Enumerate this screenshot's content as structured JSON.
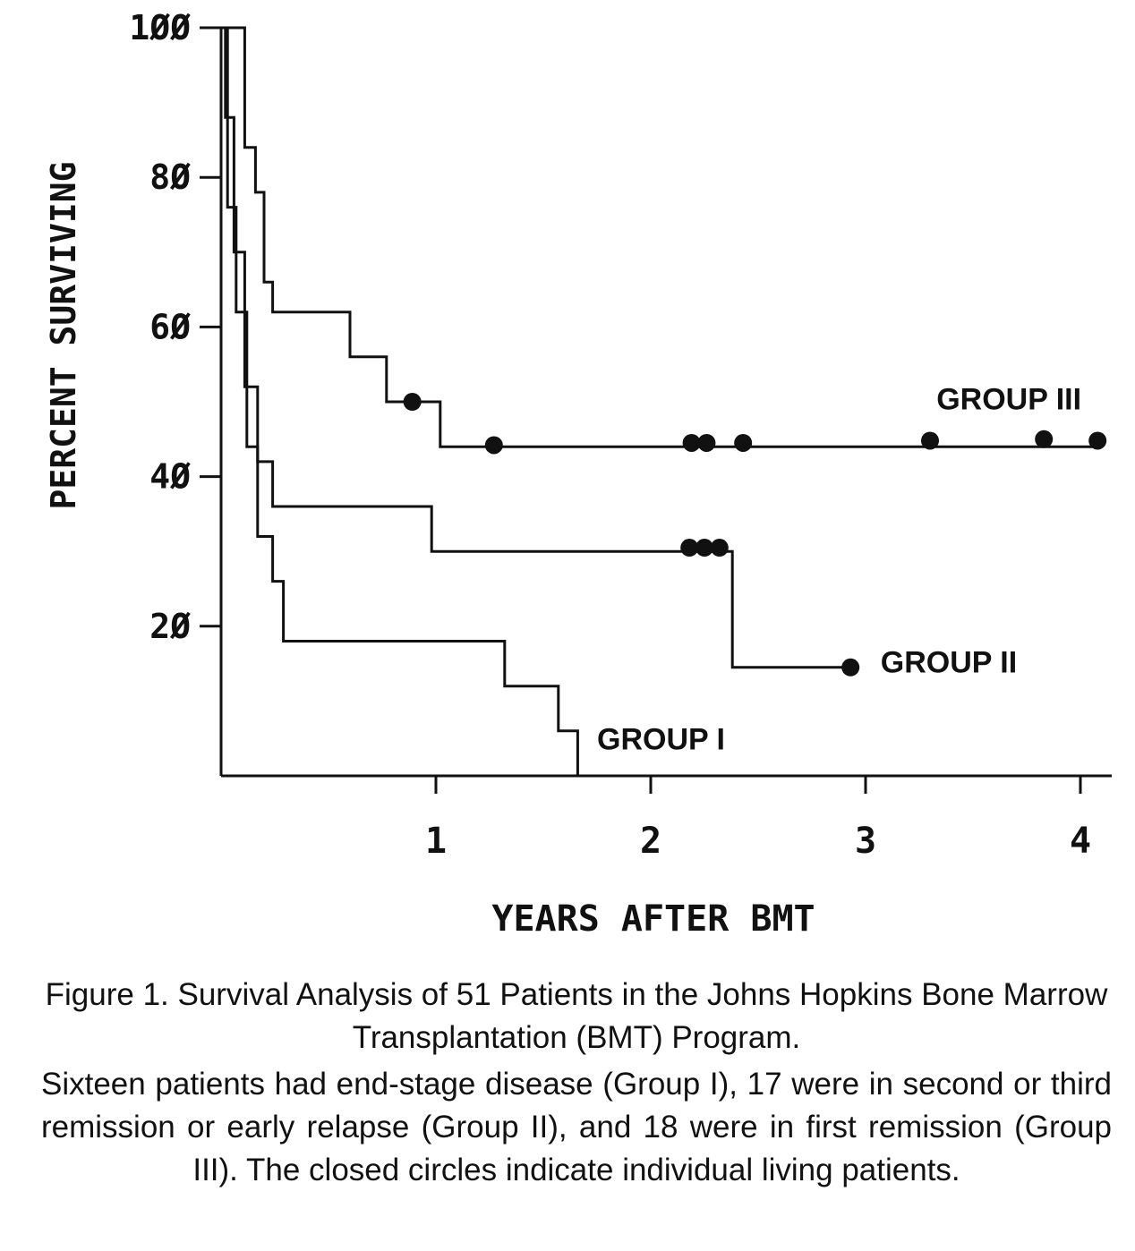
{
  "chart_data": {
    "type": "line",
    "step": true,
    "xlabel": "YEARS AFTER BMT",
    "ylabel": "PERCENT SURVIVING",
    "xlim": [
      0,
      4.1
    ],
    "ylim": [
      0,
      100
    ],
    "x_ticks": [
      1,
      2,
      3,
      4
    ],
    "x_tick_labels": [
      "1",
      "2",
      "3",
      "4"
    ],
    "y_ticks": [
      20,
      40,
      60,
      80,
      100
    ],
    "y_tick_labels": [
      "2Ø",
      "4Ø",
      "6Ø",
      "8Ø",
      "1ØØ"
    ],
    "grid": false,
    "series": [
      {
        "name": "GROUP I",
        "points": [
          [
            0,
            100
          ],
          [
            0.03,
            100
          ],
          [
            0.03,
            76
          ],
          [
            0.07,
            76
          ],
          [
            0.07,
            62
          ],
          [
            0.12,
            62
          ],
          [
            0.12,
            44
          ],
          [
            0.17,
            44
          ],
          [
            0.17,
            32
          ],
          [
            0.24,
            32
          ],
          [
            0.24,
            26
          ],
          [
            0.29,
            26
          ],
          [
            0.29,
            18
          ],
          [
            1.32,
            18
          ],
          [
            1.32,
            12
          ],
          [
            1.57,
            12
          ],
          [
            1.57,
            6
          ],
          [
            1.66,
            6
          ],
          [
            1.66,
            0
          ]
        ],
        "censored": []
      },
      {
        "name": "GROUP II",
        "points": [
          [
            0,
            100
          ],
          [
            0.02,
            100
          ],
          [
            0.02,
            88
          ],
          [
            0.06,
            88
          ],
          [
            0.06,
            70
          ],
          [
            0.11,
            70
          ],
          [
            0.11,
            52
          ],
          [
            0.17,
            52
          ],
          [
            0.17,
            42
          ],
          [
            0.24,
            42
          ],
          [
            0.24,
            36
          ],
          [
            0.98,
            36
          ],
          [
            0.98,
            30
          ],
          [
            2.38,
            30
          ],
          [
            2.38,
            14.5
          ],
          [
            2.93,
            14.5
          ]
        ],
        "censored": [
          [
            2.18,
            30.5
          ],
          [
            2.25,
            30.5
          ],
          [
            2.32,
            30.5
          ],
          [
            2.93,
            14.5
          ]
        ]
      },
      {
        "name": "GROUP III",
        "points": [
          [
            0,
            100
          ],
          [
            0.11,
            100
          ],
          [
            0.11,
            84
          ],
          [
            0.16,
            84
          ],
          [
            0.16,
            78
          ],
          [
            0.2,
            78
          ],
          [
            0.2,
            66
          ],
          [
            0.24,
            66
          ],
          [
            0.24,
            62
          ],
          [
            0.6,
            62
          ],
          [
            0.6,
            56
          ],
          [
            0.77,
            56
          ],
          [
            0.77,
            50
          ],
          [
            1.02,
            50
          ],
          [
            1.02,
            44
          ],
          [
            4.08,
            44
          ]
        ],
        "censored": [
          [
            0.89,
            50
          ],
          [
            1.27,
            44.2
          ],
          [
            2.19,
            44.5
          ],
          [
            2.26,
            44.5
          ],
          [
            2.43,
            44.5
          ],
          [
            3.3,
            44.8
          ],
          [
            3.83,
            45
          ],
          [
            4.08,
            44.8
          ]
        ]
      }
    ],
    "annotations": [
      {
        "text": "GROUP III",
        "x": 3.33,
        "y": 49
      },
      {
        "text": "GROUP II",
        "x": 3.07,
        "y": 13.8
      },
      {
        "text": "GROUP I",
        "x": 1.75,
        "y": 3.5
      }
    ]
  },
  "caption": {
    "title": "Figure 1. Survival Analysis of 51 Patients in the Johns Hopkins Bone Marrow Transplantation (BMT) Program.",
    "body": "Sixteen patients had end-stage disease (Group I), 17 were in second or third remission or early relapse (Group II), and 18 were in first remission (Group III). The closed circles indicate individual living patients."
  }
}
